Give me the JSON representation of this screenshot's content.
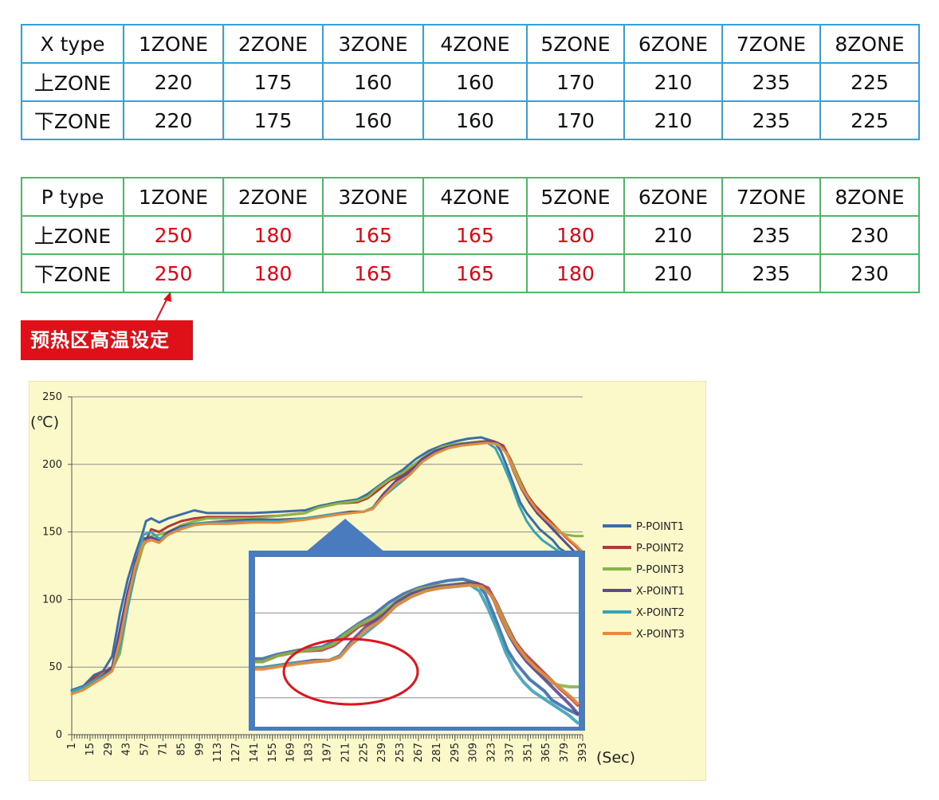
{
  "x_table": {
    "header": [
      "X type",
      "1ZONE",
      "2ZONE",
      "3ZONE",
      "4ZONE",
      "5ZONE",
      "6ZONE",
      "7ZONE",
      "8ZONE"
    ],
    "rows": [
      {
        "label": "上ZONE",
        "values": [
          "220",
          "175",
          "160",
          "160",
          "170",
          "210",
          "235",
          "225"
        ]
      },
      {
        "label": "下ZONE",
        "values": [
          "220",
          "175",
          "160",
          "160",
          "170",
          "210",
          "235",
          "225"
        ]
      }
    ],
    "border_color": "#35a1d6"
  },
  "p_table": {
    "header": [
      "P type",
      "1ZONE",
      "2ZONE",
      "3ZONE",
      "4ZONE",
      "5ZONE",
      "6ZONE",
      "7ZONE",
      "8ZONE"
    ],
    "rows": [
      {
        "label": "上ZONE",
        "values": [
          "250",
          "180",
          "165",
          "165",
          "180",
          "210",
          "235",
          "230"
        ]
      },
      {
        "label": "下ZONE",
        "values": [
          "250",
          "180",
          "165",
          "165",
          "180",
          "210",
          "235",
          "230"
        ]
      }
    ],
    "border_color": "#4db866",
    "highlight_color": "#e50012"
  },
  "callout": {
    "text": "预热区高温设定",
    "bg_color": "#e01019"
  },
  "chart_data": {
    "type": "line",
    "ylabel": "(℃)",
    "xlabel": "(Sec)",
    "ylim": [
      0,
      250
    ],
    "yticks": [
      0,
      50,
      100,
      150,
      200,
      250
    ],
    "xlim": [
      1,
      393
    ],
    "xticks": [
      1,
      15,
      29,
      43,
      57,
      71,
      85,
      99,
      113,
      127,
      141,
      155,
      169,
      183,
      197,
      211,
      225,
      239,
      253,
      267,
      281,
      295,
      309,
      323,
      337,
      351,
      365,
      379,
      393
    ],
    "grid": "horizontal",
    "background": "#fbf9c9",
    "legend_position": "right",
    "series": [
      {
        "name": "P-POINT1",
        "color": "#3b6ea8",
        "x": [
          1,
          10,
          18,
          25,
          32,
          38,
          44,
          50,
          55,
          58,
          62,
          68,
          75,
          85,
          95,
          105,
          120,
          140,
          160,
          180,
          190,
          205,
          220,
          228,
          235,
          245,
          255,
          265,
          275,
          285,
          295,
          305,
          315,
          325,
          330,
          335,
          340,
          345,
          350,
          355,
          360,
          365,
          370,
          375,
          385,
          393
        ],
        "y": [
          33,
          36,
          44,
          47,
          58,
          90,
          115,
          134,
          148,
          158,
          160,
          157,
          160,
          163,
          166,
          164,
          164,
          164,
          165,
          166,
          169,
          172,
          174,
          178,
          183,
          190,
          196,
          204,
          210,
          214,
          217,
          219,
          220,
          217,
          210,
          198,
          185,
          172,
          164,
          158,
          152,
          148,
          144,
          138,
          132,
          128
        ]
      },
      {
        "name": "P-POINT2",
        "color": "#b23a3a",
        "x": [
          1,
          10,
          18,
          25,
          32,
          38,
          44,
          50,
          56,
          62,
          68,
          75,
          85,
          95,
          105,
          120,
          140,
          160,
          180,
          190,
          205,
          220,
          228,
          235,
          245,
          255,
          265,
          275,
          285,
          295,
          305,
          315,
          325,
          332,
          338,
          344,
          350,
          356,
          362,
          368,
          374,
          380,
          387,
          393
        ],
        "y": [
          32,
          35,
          42,
          46,
          50,
          72,
          100,
          124,
          140,
          152,
          150,
          154,
          158,
          160,
          161,
          161,
          161,
          162,
          164,
          168,
          171,
          172,
          175,
          180,
          188,
          192,
          200,
          206,
          212,
          215,
          216,
          217,
          217,
          214,
          203,
          190,
          178,
          170,
          164,
          158,
          152,
          146,
          140,
          134
        ]
      },
      {
        "name": "P-POINT3",
        "color": "#8ab34a",
        "x": [
          1,
          10,
          18,
          25,
          32,
          38,
          44,
          50,
          56,
          62,
          68,
          75,
          85,
          95,
          105,
          120,
          140,
          160,
          180,
          190,
          205,
          220,
          228,
          235,
          245,
          255,
          265,
          275,
          285,
          295,
          305,
          315,
          325,
          332,
          338,
          344,
          350,
          356,
          362,
          368,
          374,
          380,
          387,
          393
        ],
        "y": [
          32,
          35,
          40,
          45,
          48,
          60,
          94,
          120,
          140,
          147,
          148,
          150,
          155,
          158,
          160,
          160,
          160,
          162,
          164,
          168,
          171,
          173,
          176,
          182,
          189,
          194,
          201,
          208,
          213,
          215,
          216,
          217,
          216,
          212,
          202,
          189,
          176,
          168,
          160,
          155,
          150,
          148,
          147,
          147
        ]
      },
      {
        "name": "X-POINT1",
        "color": "#5a4a92",
        "x": [
          1,
          10,
          18,
          25,
          32,
          38,
          44,
          50,
          56,
          62,
          68,
          75,
          85,
          95,
          105,
          120,
          140,
          160,
          180,
          200,
          215,
          225,
          232,
          240,
          250,
          260,
          270,
          280,
          290,
          300,
          310,
          320,
          328,
          335,
          340,
          346,
          352,
          358,
          364,
          370,
          376,
          382,
          388,
          393
        ],
        "y": [
          32,
          35,
          40,
          44,
          50,
          78,
          106,
          128,
          145,
          146,
          144,
          150,
          154,
          156,
          157,
          158,
          159,
          159,
          160,
          163,
          165,
          165,
          168,
          178,
          188,
          194,
          204,
          210,
          213,
          215,
          216,
          217,
          216,
          208,
          195,
          182,
          172,
          164,
          158,
          152,
          146,
          140,
          134,
          128
        ]
      },
      {
        "name": "X-POINT2",
        "color": "#3aa2b6",
        "x": [
          1,
          10,
          18,
          25,
          32,
          38,
          44,
          50,
          56,
          62,
          68,
          75,
          85,
          95,
          105,
          120,
          140,
          160,
          180,
          200,
          215,
          225,
          232,
          240,
          250,
          260,
          270,
          280,
          290,
          300,
          310,
          320,
          326,
          332,
          338,
          344,
          350,
          356,
          362,
          368,
          374,
          380,
          386,
          393
        ],
        "y": [
          32,
          35,
          40,
          43,
          47,
          65,
          94,
          122,
          148,
          150,
          145,
          148,
          153,
          156,
          157,
          157,
          158,
          158,
          160,
          163,
          164,
          165,
          168,
          176,
          184,
          192,
          202,
          208,
          212,
          214,
          215,
          216,
          212,
          200,
          186,
          170,
          158,
          150,
          144,
          140,
          136,
          132,
          128,
          122
        ]
      },
      {
        "name": "X-POINT3",
        "color": "#e58b3c",
        "x": [
          1,
          10,
          18,
          25,
          32,
          38,
          44,
          50,
          56,
          62,
          68,
          75,
          85,
          95,
          105,
          120,
          140,
          160,
          180,
          200,
          215,
          225,
          232,
          240,
          250,
          260,
          270,
          280,
          290,
          300,
          310,
          320,
          328,
          335,
          340,
          346,
          352,
          358,
          364,
          370,
          376,
          382,
          388,
          393
        ],
        "y": [
          30,
          33,
          38,
          42,
          47,
          70,
          100,
          125,
          142,
          144,
          142,
          148,
          152,
          155,
          156,
          156,
          157,
          157,
          159,
          162,
          164,
          165,
          167,
          176,
          186,
          192,
          202,
          208,
          212,
          214,
          215,
          216,
          215,
          208,
          196,
          183,
          174,
          166,
          160,
          155,
          150,
          145,
          140,
          135
        ]
      }
    ]
  },
  "inset": {
    "description_free": "",
    "gridline_fractions": [
      0.33,
      0.83
    ],
    "highlight_color": "#e0141b"
  }
}
